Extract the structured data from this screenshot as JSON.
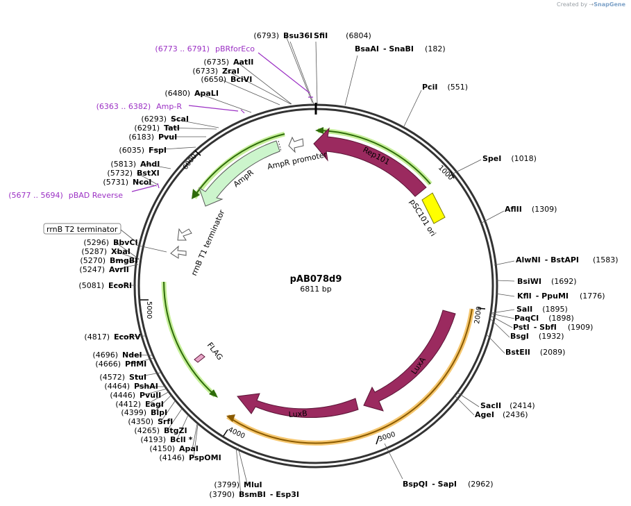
{
  "watermark": {
    "prefix": "Created by",
    "brand": "SnapGene"
  },
  "plasmid": {
    "name": "pAB078d9",
    "size_label": "6811 bp",
    "length": 6811
  },
  "ticks": [
    "1000",
    "2000",
    "3000",
    "4000",
    "5000",
    "6000"
  ],
  "sites_right": [
    {
      "id": "bsaai",
      "parts": [
        "BsaAI",
        "- SnaBI"
      ],
      "pos": "(182)"
    },
    {
      "id": "pcii",
      "parts": [
        "PciI"
      ],
      "pos": "(551)"
    },
    {
      "id": "spei",
      "parts": [
        "SpeI"
      ],
      "pos": "(1018)"
    },
    {
      "id": "aflii",
      "parts": [
        "AflII"
      ],
      "pos": "(1309)"
    },
    {
      "id": "alwni",
      "parts": [
        "AlwNI",
        "- BstAPI"
      ],
      "pos": "(1583)"
    },
    {
      "id": "bsiwi",
      "parts": [
        "BsiWI"
      ],
      "pos": "(1692)"
    },
    {
      "id": "kfli",
      "parts": [
        "KflI",
        "- PpuMI"
      ],
      "pos": "(1776)"
    },
    {
      "id": "sali",
      "parts": [
        "SalI"
      ],
      "pos": "(1895)"
    },
    {
      "id": "paqci",
      "parts": [
        "PaqCI"
      ],
      "pos": "(1898)"
    },
    {
      "id": "psti",
      "parts": [
        "PstI",
        "- SbfI"
      ],
      "pos": "(1909)"
    },
    {
      "id": "bsgi",
      "parts": [
        "BsgI"
      ],
      "pos": "(1932)"
    },
    {
      "id": "bsteii",
      "parts": [
        "BstEII"
      ],
      "pos": "(2089)"
    },
    {
      "id": "sacii",
      "parts": [
        "SacII"
      ],
      "pos": "(2414)"
    },
    {
      "id": "agei",
      "parts": [
        "AgeI"
      ],
      "pos": "(2436)"
    },
    {
      "id": "bspqi",
      "parts": [
        "BspQI",
        "- SapI"
      ],
      "pos": "(2962)"
    },
    {
      "id": "sfii",
      "parts": [
        "SfiI"
      ],
      "pos": "(6804)"
    }
  ],
  "sites_left": [
    {
      "id": "bsu36i",
      "parts": [
        "Bsu36I"
      ],
      "pos": "(6793)"
    },
    {
      "id": "aatii",
      "parts": [
        "AatII"
      ],
      "pos": "(6735)"
    },
    {
      "id": "zrai",
      "parts": [
        "ZraI"
      ],
      "pos": "(6733)"
    },
    {
      "id": "bcivi",
      "parts": [
        "BciVI"
      ],
      "pos": "(6650)"
    },
    {
      "id": "apali",
      "parts": [
        "ApaLI"
      ],
      "pos": "(6480)"
    },
    {
      "id": "scai",
      "parts": [
        "ScaI"
      ],
      "pos": "(6293)"
    },
    {
      "id": "tati",
      "parts": [
        "TatI"
      ],
      "pos": "(6291)"
    },
    {
      "id": "pvui",
      "parts": [
        "PvuI"
      ],
      "pos": "(6183)"
    },
    {
      "id": "fspi",
      "parts": [
        "FspI"
      ],
      "pos": "(6035)"
    },
    {
      "id": "ahdi",
      "parts": [
        "AhdI"
      ],
      "pos": "(5813)"
    },
    {
      "id": "bstxi",
      "parts": [
        "BstXI"
      ],
      "pos": "(5732)"
    },
    {
      "id": "ncoi",
      "parts": [
        "NcoI"
      ],
      "pos": "(5731)"
    },
    {
      "id": "bbvci",
      "parts": [
        "BbvCI"
      ],
      "pos": "(5296)"
    },
    {
      "id": "xbai",
      "parts": [
        "XbaI"
      ],
      "pos": "(5287)"
    },
    {
      "id": "bmgbi",
      "parts": [
        "BmgBI"
      ],
      "pos": "(5270)"
    },
    {
      "id": "avrii",
      "parts": [
        "AvrII"
      ],
      "pos": "(5247)"
    },
    {
      "id": "ecori",
      "parts": [
        "EcoRI"
      ],
      "pos": "(5081)"
    },
    {
      "id": "ecorv",
      "parts": [
        "EcoRV"
      ],
      "pos": "(4817)"
    },
    {
      "id": "ndei",
      "parts": [
        "NdeI"
      ],
      "pos": "(4696)"
    },
    {
      "id": "pflmi",
      "parts": [
        "PflMI"
      ],
      "pos": "(4666)"
    },
    {
      "id": "stui",
      "parts": [
        "StuI"
      ],
      "pos": "(4572)"
    },
    {
      "id": "pshai",
      "parts": [
        "PshAI"
      ],
      "pos": "(4464)"
    },
    {
      "id": "pvuii",
      "parts": [
        "PvuII"
      ],
      "pos": "(4446)"
    },
    {
      "id": "eagi",
      "parts": [
        "EagI"
      ],
      "pos": "(4412)"
    },
    {
      "id": "blpi",
      "parts": [
        "BlpI"
      ],
      "pos": "(4399)"
    },
    {
      "id": "srfi",
      "parts": [
        "SrfI"
      ],
      "pos": "(4350)"
    },
    {
      "id": "btgzi",
      "parts": [
        "BtgZI"
      ],
      "pos": "(4265)"
    },
    {
      "id": "bcli",
      "parts": [
        "BclI *"
      ],
      "pos": "(4193)"
    },
    {
      "id": "apai",
      "parts": [
        "ApaI"
      ],
      "pos": "(4150)"
    },
    {
      "id": "pspomi",
      "parts": [
        "PspOMI"
      ],
      "pos": "(4146)"
    },
    {
      "id": "mlui",
      "parts": [
        "MluI"
      ],
      "pos": "(3799)"
    },
    {
      "id": "bsmbi",
      "parts": [
        "BsmBI",
        "- Esp3I"
      ],
      "pos": "(3790)"
    }
  ],
  "primers": [
    {
      "id": "pbrforeco",
      "range": "(6773 .. 6791)",
      "name": "pBRforEco"
    },
    {
      "id": "amp-r",
      "range": "(6363 .. 6382)",
      "name": "Amp-R"
    },
    {
      "id": "pbad-reverse",
      "range": "(5677 .. 5694)",
      "name": "pBAD Reverse"
    }
  ],
  "features": {
    "rep101": "Rep101",
    "psc101_ori": "pSC101 ori",
    "ampr": "AmpR",
    "ampr_promoter": "AmpR promoter",
    "rrnb_t1": "rrnB T1 terminator",
    "rrnb_t2": "rrnB T2 terminator",
    "flag": "FLAG",
    "luxa": "LuxA",
    "luxb": "LuxB"
  },
  "colors": {
    "backbone": "#333333",
    "cds": "#9b2a5f",
    "ori": "#ffff00",
    "ampr_fill": "#ccf5cc",
    "green_line": "#2e6b0a",
    "green_glow": "#c6ef9a",
    "orange_glow": "#f5c66e",
    "orange_line": "#8a5a00",
    "primer": "#9b30c4"
  }
}
